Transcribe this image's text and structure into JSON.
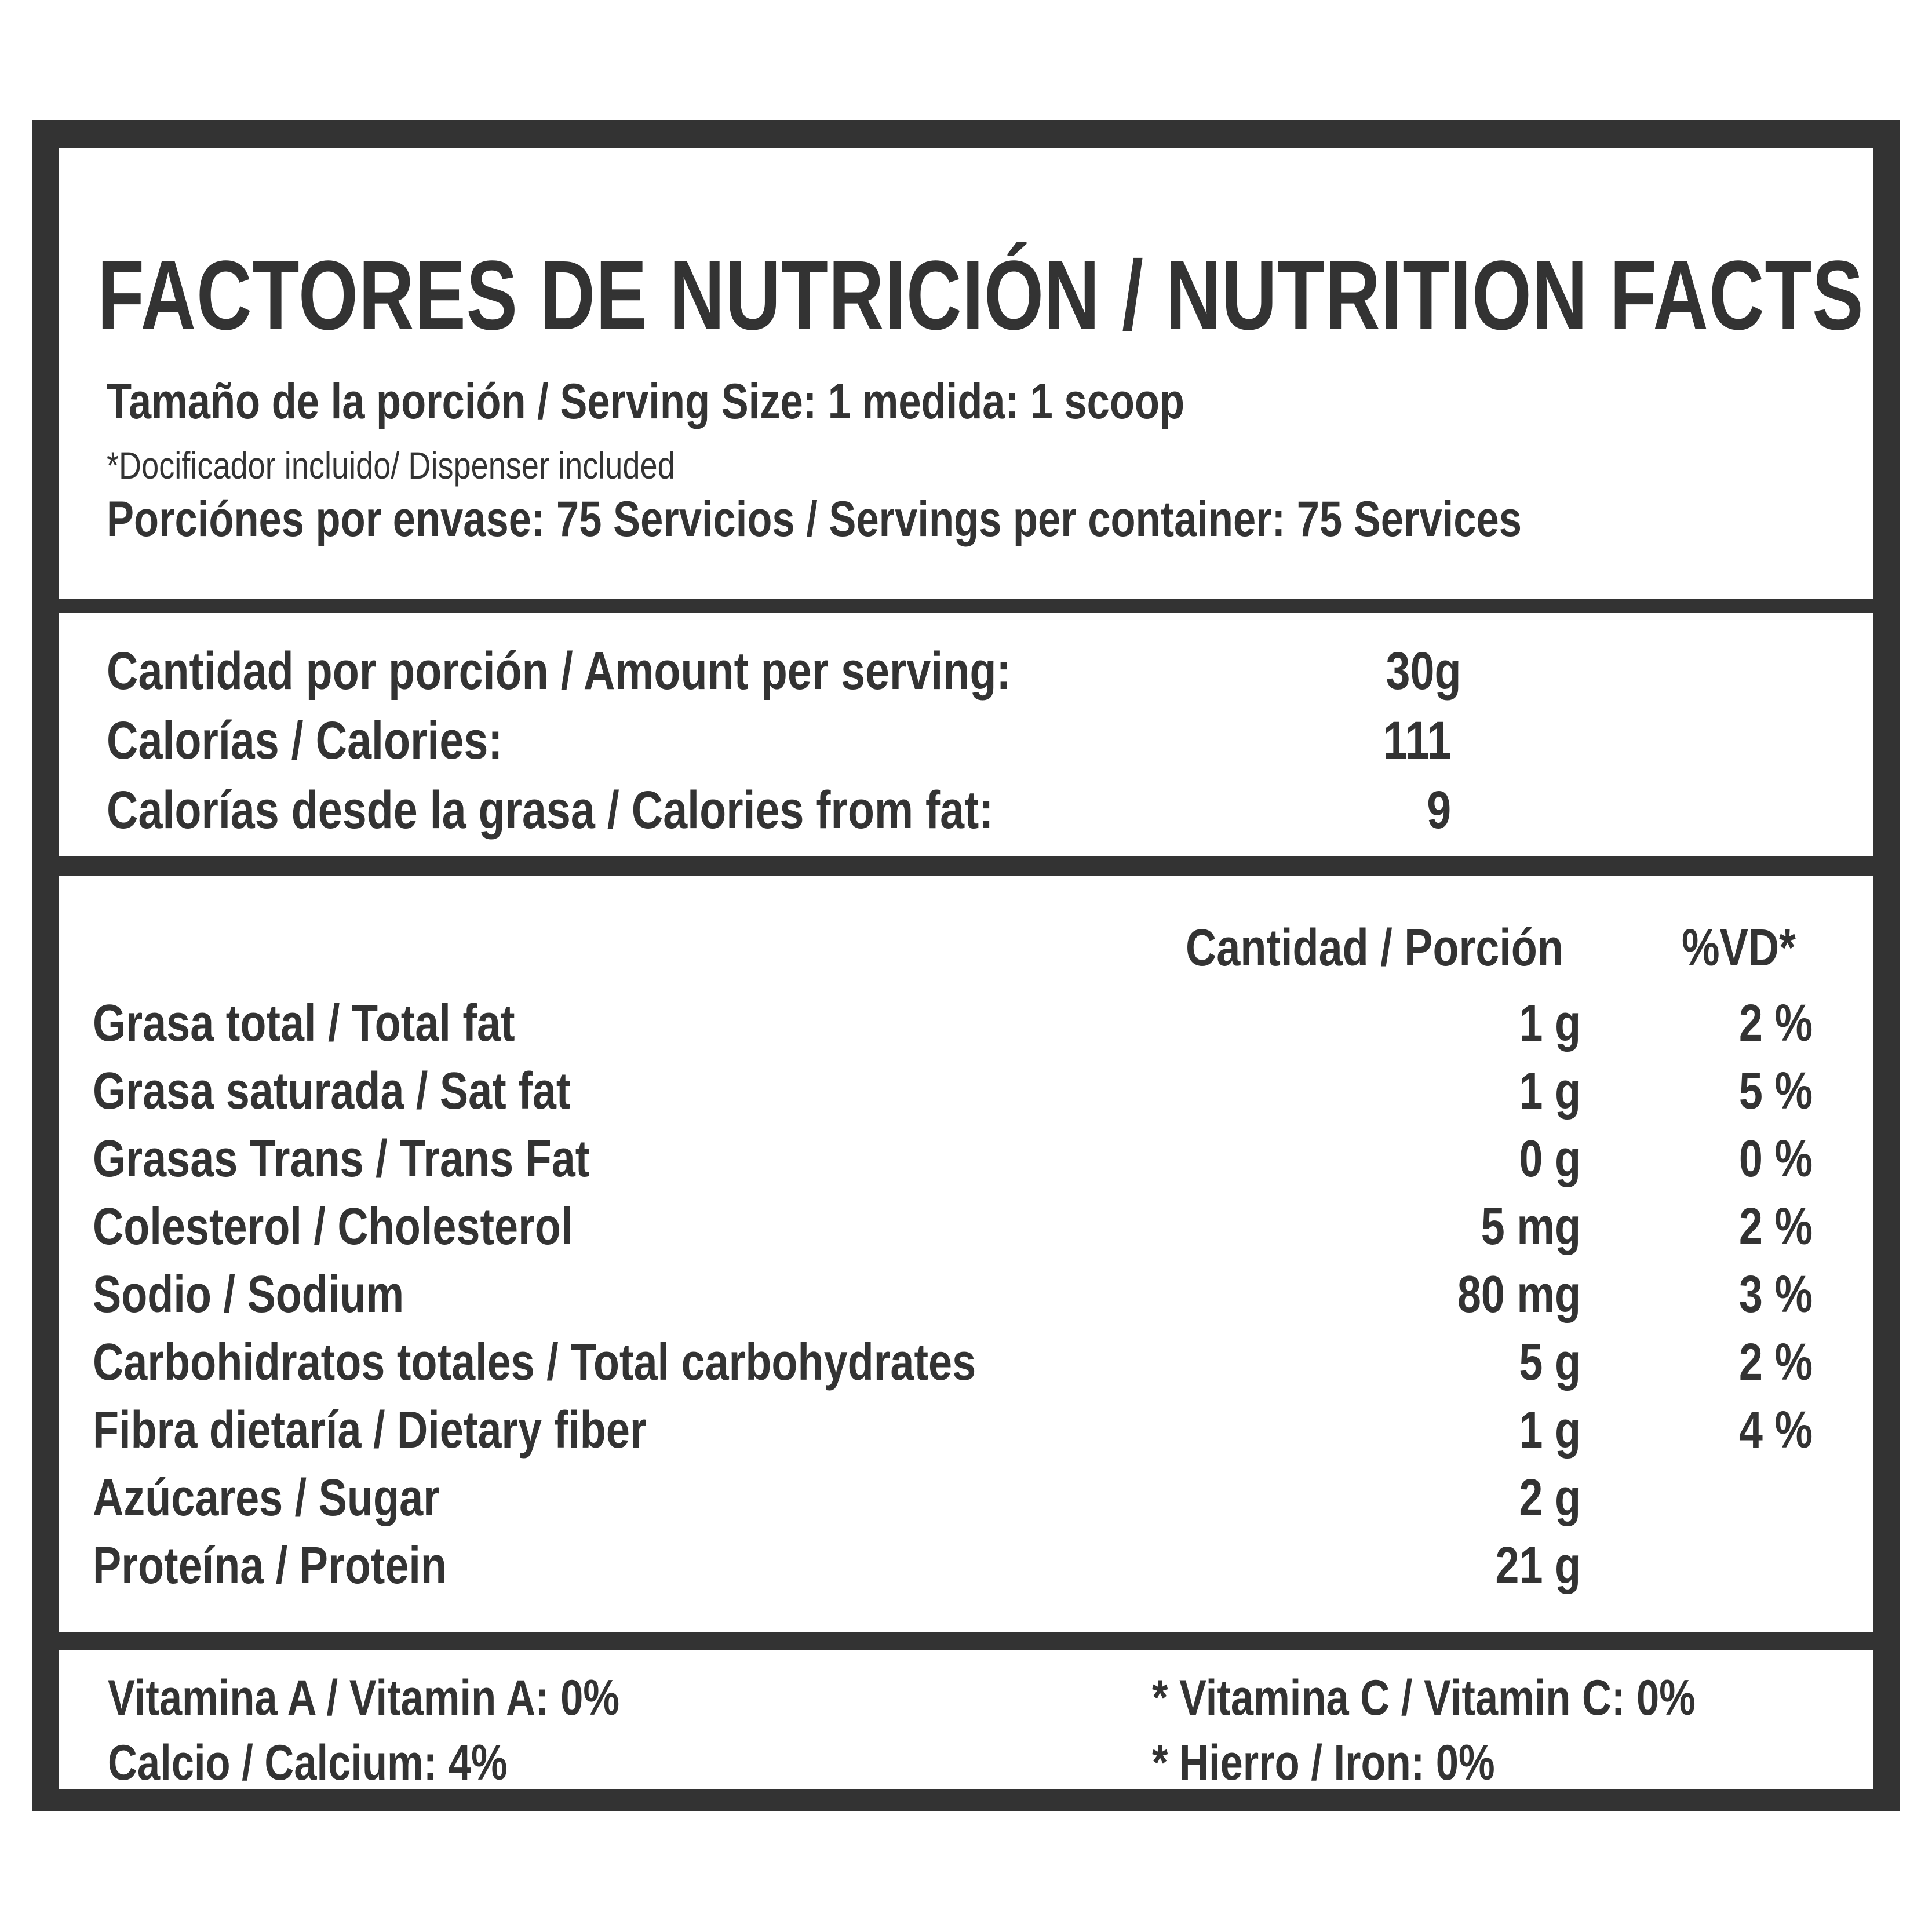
{
  "header": {
    "title": "FACTORES DE NUTRICIÓN / NUTRITION FACTS",
    "serving_size": "Tamaño de la porción / Serving Size: 1 medida: 1 scoop",
    "dispenser_note": "*Docificador incluido/ Dispenser included",
    "servings_per_container": "Porciónes por envase: 75 Servicios / Servings per container: 75 Services"
  },
  "calories": {
    "amount_label": "Cantidad por porción / Amount per serving:",
    "amount_value": "30g",
    "calories_label": "Calorías / Calories:",
    "calories_value": "111",
    "from_fat_label": "Calorías desde la grasa / Calories from fat:",
    "from_fat_value": "9"
  },
  "nutrients": {
    "header_amount": "Cantidad / Porción",
    "header_dv": "%VD*",
    "rows": [
      {
        "name": "Grasa total / Total fat",
        "amount": "1 g",
        "dv": "2 %"
      },
      {
        "name": "Grasa saturada / Sat fat",
        "amount": "1 g",
        "dv": "5 %"
      },
      {
        "name": "Grasas Trans / Trans Fat",
        "amount": "0 g",
        "dv": "0 %"
      },
      {
        "name": "Colesterol / Cholesterol",
        "amount": "5 mg",
        "dv": "2 %"
      },
      {
        "name": "Sodio / Sodium",
        "amount": "80 mg",
        "dv": "3 %"
      },
      {
        "name": "Carbohidratos totales / Total carbohydrates",
        "amount": "5 g",
        "dv": "2 %"
      },
      {
        "name": "Fibra dietaría / Dietary fiber",
        "amount": "1 g",
        "dv": "4 %"
      },
      {
        "name": "Azúcares / Sugar",
        "amount": "2 g",
        "dv": ""
      },
      {
        "name": "Proteína / Protein",
        "amount": "21 g",
        "dv": ""
      }
    ]
  },
  "vitamins": {
    "vitamin_a": "Vitamina A / Vitamin A: 0%",
    "calcium": "Calcio / Calcium: 4%",
    "vitamin_c": "* Vitamina C / Vitamin C: 0%",
    "iron": "* Hierro / Iron: 0%"
  }
}
